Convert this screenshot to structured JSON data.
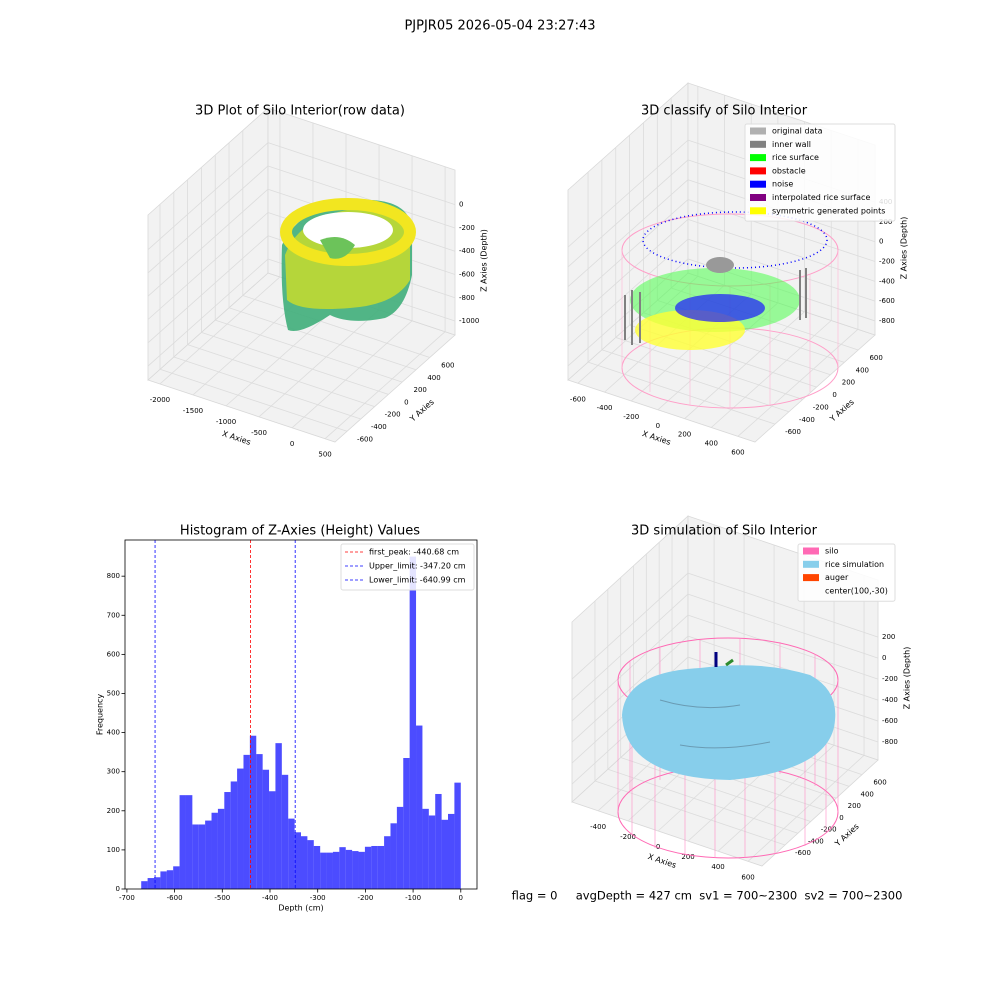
{
  "figure": {
    "title": "PJPJR05 2026-05-04 23:27:43",
    "footer": "flag = 0     avgDepth = 427 cm  sv1 = 700~2300  sv2 = 700~2300"
  },
  "chart_data": [
    {
      "type": "scatter3d",
      "title": "3D Plot of Silo Interior(row data)",
      "xlabel": "X Axies",
      "ylabel": "Y Axies",
      "zlabel": "Z Axies (Depth)",
      "xlim": [
        -2181,
        650
      ],
      "ylim": [
        -774,
        965
      ],
      "zlim": [
        -1120,
        298
      ],
      "xticks": [
        -2000,
        -1500,
        -1000,
        -500,
        0,
        500
      ],
      "yticks": [
        -600,
        -400,
        -200,
        0,
        200,
        400,
        600
      ],
      "zticks": [
        -1000,
        -800,
        -600,
        -400,
        -200,
        0
      ],
      "grid": true
    },
    {
      "type": "scatter3d",
      "title": "3D classify of Silo Interior",
      "xlabel": "X Axies",
      "ylabel": "Y Axies",
      "zlabel": "Z Axies (Depth)",
      "xlim": [
        -674,
        728
      ],
      "ylim": [
        -889,
        843
      ],
      "zlim": [
        -942,
        977
      ],
      "xticks": [
        -600,
        -400,
        -200,
        0,
        200,
        400,
        600
      ],
      "yticks": [
        -600,
        -400,
        -200,
        0,
        200,
        400,
        600
      ],
      "zticks": [
        -800,
        -600,
        -400,
        -200,
        0,
        200,
        400
      ],
      "grid": true,
      "legend": "upper right",
      "series": [
        {
          "name": "original data",
          "color": "#b0b0b0"
        },
        {
          "name": "inner wall",
          "color": "#808080"
        },
        {
          "name": "rice surface",
          "color": "#00ff00"
        },
        {
          "name": "obstacle",
          "color": "#ff0000"
        },
        {
          "name": "noise",
          "color": "#0000ff"
        },
        {
          "name": "interpolated rice surface",
          "color": "#800080"
        },
        {
          "name": "symmetric generated points",
          "color": "#ffff00"
        }
      ]
    },
    {
      "type": "histogram",
      "title": "Histogram of Z-Axies (Height) Values",
      "xlabel": "Depth (cm)",
      "ylabel": "Frequency",
      "color": "#0000ff",
      "alpha": 0.7,
      "bins": [
        -670,
        -656.6,
        -643.2,
        -629.8,
        -616.4,
        -603,
        -589.6,
        -576.2,
        -562.8,
        -549.4,
        -536,
        -522.6,
        -509.2,
        -495.8,
        -482.4,
        -469,
        -455.6,
        -442.2,
        -428.8,
        -415.4,
        -402,
        -388.6,
        -375.2,
        -361.8,
        -348.4,
        -335,
        -321.6,
        -308.2,
        -294.8,
        -281.4,
        -268,
        -254.6,
        -241.2,
        -227.8,
        -214.4,
        -201,
        -187.6,
        -174.2,
        -160.8,
        -147.4,
        -134,
        -120.6,
        -107.2,
        -93.8,
        -80.4,
        -67,
        -53.6,
        -40.2,
        -26.8,
        -13.4,
        0
      ],
      "counts": [
        20,
        28,
        30,
        45,
        48,
        58,
        240,
        240,
        165,
        165,
        175,
        195,
        205,
        248,
        275,
        308,
        343,
        392,
        345,
        305,
        250,
        373,
        292,
        180,
        145,
        135,
        125,
        110,
        93,
        93,
        95,
        107,
        100,
        97,
        95,
        108,
        110,
        110,
        135,
        168,
        210,
        335,
        850,
        418,
        205,
        188,
        243,
        177,
        192,
        272
      ],
      "xlim": [
        -704,
        34
      ],
      "ylim": [
        0,
        892.5
      ],
      "xticks": [
        -700,
        -600,
        -500,
        -400,
        -300,
        -200,
        -100,
        0
      ],
      "yticks": [
        0,
        100,
        200,
        300,
        400,
        500,
        600,
        700,
        800
      ],
      "legend": "upper right",
      "lines": [
        {
          "value": -440.68,
          "label": "first_peak: -440.68 cm",
          "color": "#ff0000"
        },
        {
          "value": -347.2,
          "label": "Upper_limit: -347.20 cm",
          "color": "#0000ff"
        },
        {
          "value": -640.99,
          "label": "Lower_limit: -640.99 cm",
          "color": "#0000ff"
        }
      ]
    },
    {
      "type": "scatter3d",
      "title": "3D simulation of Silo Interior",
      "xlabel": "X Axies",
      "ylabel": "Y Axies",
      "zlabel": "Z Axies (Depth)",
      "xlim": [
        -574,
        693
      ],
      "ylim": [
        -958,
        849
      ],
      "zlim": [
        -971,
        744
      ],
      "xticks": [
        -400,
        -200,
        0,
        200,
        400,
        600
      ],
      "yticks": [
        -600,
        -400,
        -200,
        0,
        200,
        400,
        600
      ],
      "zticks": [
        -800,
        -600,
        -400,
        -200,
        0,
        200
      ],
      "grid": true,
      "legend": "upper right",
      "series": [
        {
          "name": "silo",
          "color": "#ff69b4"
        },
        {
          "name": "rice simulation",
          "color": "#87ceeb"
        },
        {
          "name": "auger",
          "color": "#ff4500"
        },
        {
          "name": "center(100,-30)",
          "color": null
        }
      ]
    }
  ]
}
